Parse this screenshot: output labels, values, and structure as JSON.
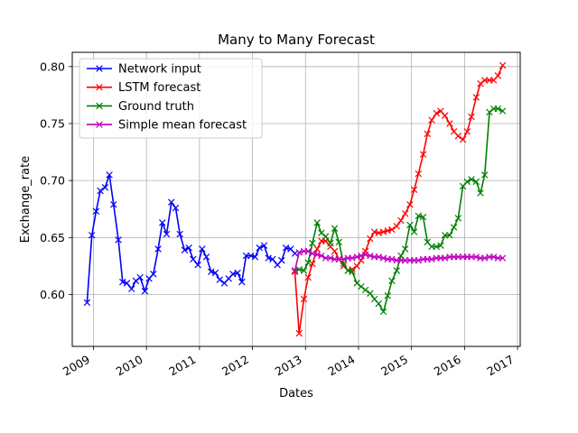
{
  "chart_data": {
    "type": "line",
    "title": "Many to Many Forecast",
    "xlabel": "Dates",
    "ylabel": "Exchange_rate",
    "xlim": [
      2008.6,
      2017.05
    ],
    "ylim": [
      0.5545,
      0.8125
    ],
    "xticks": [
      2009,
      2010,
      2011,
      2012,
      2013,
      2014,
      2015,
      2016,
      2017
    ],
    "xtick_labels": [
      "2009",
      "2010",
      "2011",
      "2012",
      "2013",
      "2014",
      "2015",
      "2016",
      "2017"
    ],
    "yticks": [
      0.6,
      0.65,
      0.7,
      0.75,
      0.8
    ],
    "ytick_labels": [
      "0.60",
      "0.65",
      "0.70",
      "0.75",
      "0.80"
    ],
    "grid": true,
    "legend_position": "top-left",
    "series": [
      {
        "name": "Network input",
        "color": "#0000ff",
        "marker": "x",
        "x": [
          2008.88,
          2008.97,
          2009.05,
          2009.13,
          2009.22,
          2009.3,
          2009.38,
          2009.47,
          2009.55,
          2009.63,
          2009.72,
          2009.8,
          2009.88,
          2009.97,
          2010.05,
          2010.13,
          2010.22,
          2010.3,
          2010.38,
          2010.47,
          2010.55,
          2010.63,
          2010.72,
          2010.8,
          2010.88,
          2010.97,
          2011.05,
          2011.13,
          2011.22,
          2011.3,
          2011.38,
          2011.47,
          2011.55,
          2011.63,
          2011.72,
          2011.8,
          2011.88,
          2011.97,
          2012.05,
          2012.13,
          2012.22,
          2012.3,
          2012.38,
          2012.47,
          2012.55,
          2012.63,
          2012.72,
          2012.8
        ],
        "y": [
          0.593,
          0.652,
          0.673,
          0.691,
          0.694,
          0.705,
          0.679,
          0.648,
          0.611,
          0.61,
          0.605,
          0.612,
          0.615,
          0.603,
          0.614,
          0.618,
          0.64,
          0.663,
          0.653,
          0.681,
          0.676,
          0.653,
          0.639,
          0.641,
          0.631,
          0.626,
          0.64,
          0.633,
          0.62,
          0.619,
          0.613,
          0.61,
          0.614,
          0.618,
          0.619,
          0.611,
          0.634,
          0.634,
          0.633,
          0.641,
          0.643,
          0.632,
          0.631,
          0.626,
          0.63,
          0.641,
          0.64,
          0.636
        ]
      },
      {
        "name": "LSTM forecast",
        "color": "#ff0000",
        "marker": "x",
        "x": [
          2012.8,
          2012.88,
          2012.97,
          2013.05,
          2013.13,
          2013.22,
          2013.3,
          2013.38,
          2013.47,
          2013.55,
          2013.63,
          2013.72,
          2013.8,
          2013.88,
          2013.97,
          2014.05,
          2014.13,
          2014.22,
          2014.3,
          2014.38,
          2014.47,
          2014.55,
          2014.63,
          2014.72,
          2014.8,
          2014.88,
          2014.97,
          2015.05,
          2015.13,
          2015.22,
          2015.3,
          2015.38,
          2015.47,
          2015.55,
          2015.63,
          2015.72,
          2015.8,
          2015.88,
          2015.97,
          2016.05,
          2016.13,
          2016.22,
          2016.3,
          2016.38,
          2016.47,
          2016.55,
          2016.63,
          2016.72
        ],
        "y": [
          0.62,
          0.566,
          0.596,
          0.615,
          0.627,
          0.64,
          0.647,
          0.647,
          0.642,
          0.638,
          0.631,
          0.625,
          0.621,
          0.622,
          0.625,
          0.63,
          0.638,
          0.649,
          0.655,
          0.654,
          0.655,
          0.656,
          0.657,
          0.66,
          0.665,
          0.671,
          0.679,
          0.692,
          0.706,
          0.723,
          0.741,
          0.753,
          0.759,
          0.761,
          0.757,
          0.75,
          0.743,
          0.739,
          0.736,
          0.743,
          0.756,
          0.773,
          0.785,
          0.788,
          0.788,
          0.788,
          0.792,
          0.801
        ]
      },
      {
        "name": "Ground truth",
        "color": "#008000",
        "marker": "x",
        "x": [
          2012.8,
          2012.88,
          2012.97,
          2013.05,
          2013.13,
          2013.22,
          2013.3,
          2013.38,
          2013.47,
          2013.55,
          2013.63,
          2013.72,
          2013.8,
          2013.88,
          2013.97,
          2014.05,
          2014.13,
          2014.22,
          2014.3,
          2014.38,
          2014.47,
          2014.55,
          2014.63,
          2014.72,
          2014.8,
          2014.88,
          2014.97,
          2015.05,
          2015.13,
          2015.22,
          2015.3,
          2015.38,
          2015.47,
          2015.55,
          2015.63,
          2015.72,
          2015.8,
          2015.88,
          2015.97,
          2016.05,
          2016.13,
          2016.22,
          2016.3,
          2016.38,
          2016.47,
          2016.55,
          2016.63,
          2016.72
        ],
        "y": [
          0.621,
          0.622,
          0.621,
          0.628,
          0.645,
          0.663,
          0.654,
          0.651,
          0.645,
          0.658,
          0.646,
          0.627,
          0.621,
          0.62,
          0.61,
          0.607,
          0.604,
          0.601,
          0.596,
          0.592,
          0.585,
          0.599,
          0.612,
          0.621,
          0.634,
          0.64,
          0.661,
          0.655,
          0.669,
          0.668,
          0.646,
          0.642,
          0.642,
          0.643,
          0.652,
          0.652,
          0.659,
          0.667,
          0.695,
          0.699,
          0.701,
          0.699,
          0.689,
          0.705,
          0.76,
          0.763,
          0.763,
          0.761
        ]
      },
      {
        "name": "Simple mean forecast",
        "color": "#bf00bf",
        "marker": "x",
        "x": [
          2012.8,
          2012.88,
          2012.97,
          2013.05,
          2013.13,
          2013.22,
          2013.3,
          2013.38,
          2013.47,
          2013.55,
          2013.63,
          2013.72,
          2013.8,
          2013.88,
          2013.97,
          2014.05,
          2014.13,
          2014.22,
          2014.3,
          2014.38,
          2014.47,
          2014.55,
          2014.63,
          2014.72,
          2014.8,
          2014.88,
          2014.97,
          2015.05,
          2015.13,
          2015.22,
          2015.3,
          2015.38,
          2015.47,
          2015.55,
          2015.63,
          2015.72,
          2015.8,
          2015.88,
          2015.97,
          2016.05,
          2016.13,
          2016.22,
          2016.3,
          2016.38,
          2016.47,
          2016.55,
          2016.63,
          2016.72
        ],
        "y": [
          0.621,
          0.637,
          0.638,
          0.638,
          0.636,
          0.635,
          0.634,
          0.632,
          0.632,
          0.631,
          0.631,
          0.631,
          0.632,
          0.632,
          0.633,
          0.634,
          0.635,
          0.634,
          0.633,
          0.633,
          0.632,
          0.631,
          0.631,
          0.63,
          0.63,
          0.63,
          0.63,
          0.63,
          0.63,
          0.631,
          0.631,
          0.631,
          0.632,
          0.632,
          0.632,
          0.633,
          0.633,
          0.633,
          0.633,
          0.633,
          0.633,
          0.633,
          0.632,
          0.632,
          0.633,
          0.633,
          0.632,
          0.632
        ]
      }
    ]
  }
}
